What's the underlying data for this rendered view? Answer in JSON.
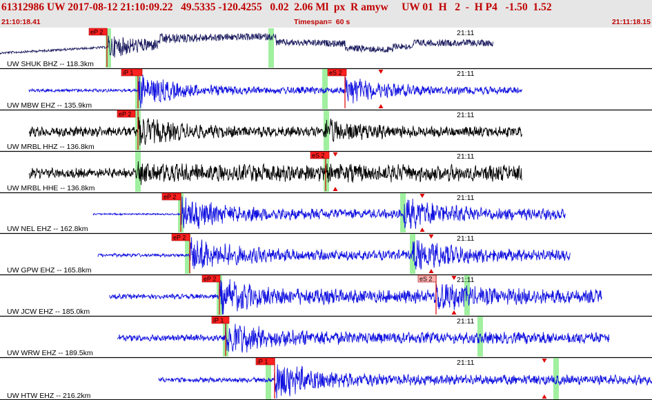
{
  "header": {
    "title": "61312986 UW 2017-08-12 21:10:09.22   49.5335 -120.4255   0.02  2.06 Ml  px  R amyw     UW 01  H   2  -  H P4   -1.50  1.52",
    "start_time": "21:10:18.41",
    "timespan": "Timespan=  60 s",
    "end_time": "21:11:18.15"
  },
  "colors": {
    "header_text": "#c00000",
    "header_bg": "#e6e6e6",
    "trace_blue": "#1010e0",
    "trace_black": "#000000",
    "trace_navy": "#1a1a5e",
    "pick_red": "#e00000",
    "pick_label_bg": "#ff2020",
    "pick_label_light": "#ffb0b0",
    "pick_window": "#a0f0a0"
  },
  "traces": [
    {
      "label": "UW SHUK BHZ -- 118.3km",
      "time_mark": "21:11",
      "color": "navy",
      "picks": [
        {
          "label": "eP 2",
          "style": "solid"
        }
      ]
    },
    {
      "label": "UW MBW EHZ -- 135.9km",
      "time_mark": "21:11",
      "color": "blue",
      "picks": [
        {
          "label": "iP 1",
          "style": "solid"
        },
        {
          "label": "eS 2",
          "style": "solid"
        }
      ]
    },
    {
      "label": "UW MRBL HHZ -- 136.8km",
      "time_mark": "21:11",
      "color": "black",
      "picks": [
        {
          "label": "eP 2",
          "style": "solid"
        }
      ]
    },
    {
      "label": "UW MRBL HHE -- 136.8km",
      "time_mark": "21:11",
      "color": "black",
      "picks": [
        {
          "label": "eS 2",
          "style": "solid"
        }
      ]
    },
    {
      "label": "UW NEL EHZ -- 162.8km",
      "time_mark": "21:11",
      "color": "blue",
      "picks": [
        {
          "label": "eP 2",
          "style": "solid"
        }
      ]
    },
    {
      "label": "UW GPW EHZ -- 165.8km",
      "time_mark": "21:11",
      "color": "blue",
      "picks": [
        {
          "label": "eP 2",
          "style": "solid"
        }
      ]
    },
    {
      "label": "UW JCW EHZ -- 185.0km",
      "time_mark": "21:11",
      "color": "blue",
      "picks": [
        {
          "label": "eP 2",
          "style": "solid"
        },
        {
          "label": "eS 2",
          "style": "light"
        }
      ]
    },
    {
      "label": "UW WRW EHZ -- 189.5km",
      "time_mark": "21:11",
      "color": "blue",
      "picks": [
        {
          "label": "iP 1",
          "style": "solid"
        }
      ]
    },
    {
      "label": "UW HTW EHZ -- 216.2km",
      "time_mark": "21:11",
      "color": "blue",
      "picks": [
        {
          "label": "iP 1",
          "style": "solid"
        }
      ]
    }
  ]
}
